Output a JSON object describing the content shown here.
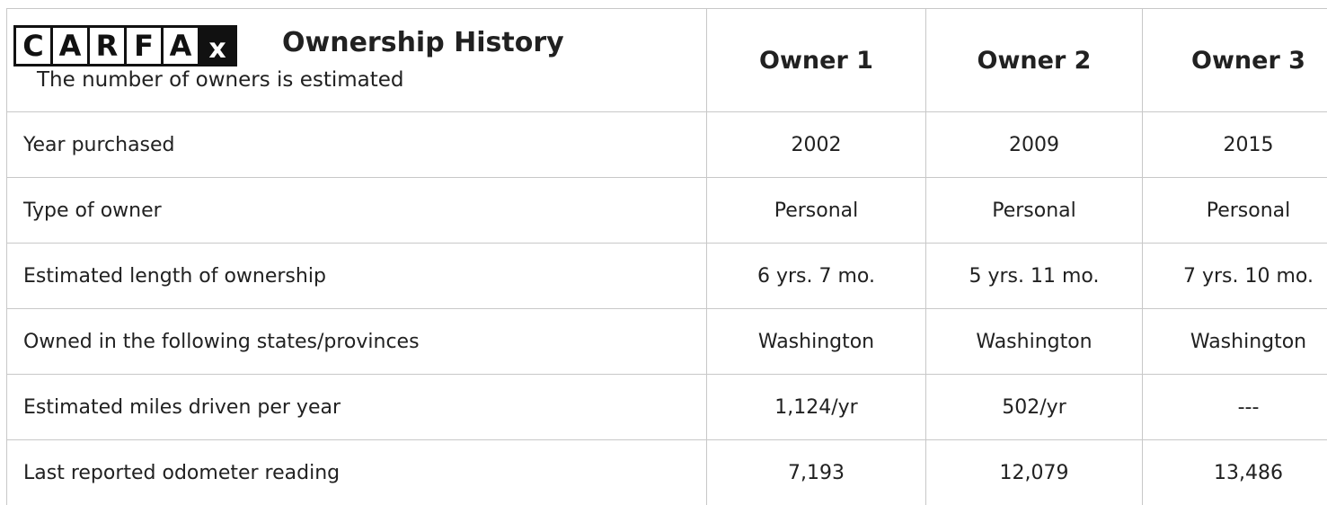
{
  "header": {
    "logo": [
      "C",
      "A",
      "R",
      "F",
      "A",
      "x"
    ],
    "title": "Ownership History",
    "subtitle": "The number of owners is estimated",
    "columns": [
      "Owner 1",
      "Owner 2",
      "Owner 3"
    ]
  },
  "table": {
    "rows": [
      [
        "Year purchased",
        "2002",
        "2009",
        "2015"
      ],
      [
        "Type of owner",
        "Personal",
        "Personal",
        "Personal"
      ],
      [
        "Estimated length of ownership",
        "6 yrs. 7 mo.",
        "5 yrs. 11 mo.",
        "7 yrs. 10 mo."
      ],
      [
        "Owned in the following states/provinces",
        "Washington",
        "Washington",
        "Washington"
      ],
      [
        "Estimated miles driven per year",
        "1,124/yr",
        "502/yr",
        "---"
      ],
      [
        "Last reported odometer reading",
        "7,193",
        "12,079",
        "13,486"
      ]
    ]
  }
}
